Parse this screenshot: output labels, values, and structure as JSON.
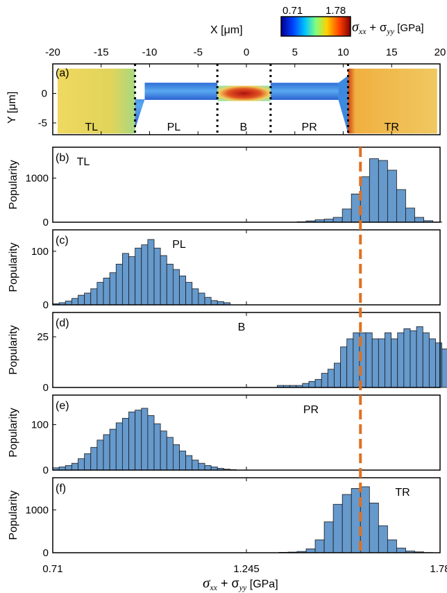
{
  "colorbar": {
    "min_label": "0.71",
    "max_label": "1.78",
    "label_main": "σ",
    "label_sub1": "xx",
    "label_plus": " + σ",
    "label_sub2": "yy",
    "label_unit": " [GPa]",
    "colors": [
      "#00008f",
      "#0040ff",
      "#00c0ff",
      "#80ff80",
      "#ffd000",
      "#ff4000",
      "#800000"
    ]
  },
  "map_panel": {
    "panel_label": "(a)",
    "x_axis_title": "X [μm]",
    "y_axis_title": "Y [μm]",
    "x_ticks": [
      "-20",
      "-15",
      "-10",
      "-5",
      "0",
      "5",
      "10",
      "15",
      "20"
    ],
    "y_ticks": [
      "0",
      "-5"
    ],
    "xlim": [
      -20,
      20
    ],
    "ylim": [
      -7,
      5
    ],
    "region_labels": [
      "TL",
      "PL",
      "B",
      "PR",
      "TR"
    ],
    "region_boundaries_x": [
      -11.5,
      -3,
      2.5,
      10.5
    ],
    "colors": {
      "TL": "#e8d45a",
      "PL": "#3c8ae0",
      "B": "#c02020",
      "PR": "#3c8ae0",
      "TR": "#e8c85a"
    }
  },
  "x_axis": {
    "ticks": [
      "0.71",
      "1.245",
      "1.78"
    ],
    "label_main": "σ",
    "label_sub1": "xx",
    "label_plus": " + σ",
    "label_sub2": "yy",
    "label_unit": " [GPa]"
  },
  "dashed_line": {
    "x": 1.56,
    "color": "#e07020"
  },
  "bar_color": "#6699cc",
  "chart_data": [
    {
      "type": "bar",
      "panel_label": "(b)",
      "region": "TL",
      "ylabel": "Popularity",
      "yticks": [
        "0",
        "1000"
      ],
      "ylim": [
        0,
        1700
      ],
      "bin_start": 0.71,
      "bin_width": 0.025,
      "values": [
        0,
        0,
        0,
        0,
        0,
        0,
        0,
        0,
        0,
        0,
        0,
        0,
        0,
        0,
        0,
        0,
        0,
        0,
        0,
        0,
        0,
        0,
        0,
        0,
        0,
        0,
        0,
        10,
        30,
        55,
        70,
        110,
        300,
        640,
        1030,
        1440,
        1400,
        1180,
        740,
        320,
        110,
        35,
        5,
        0
      ]
    },
    {
      "type": "bar",
      "panel_label": "(c)",
      "region": "PL",
      "ylabel": "Popularity",
      "yticks": [
        "0",
        "100"
      ],
      "ylim": [
        0,
        140
      ],
      "bin_start": 0.71,
      "bin_width": 0.0175,
      "values": [
        2,
        4,
        7,
        12,
        18,
        22,
        30,
        42,
        50,
        60,
        76,
        96,
        90,
        106,
        112,
        122,
        106,
        92,
        76,
        66,
        54,
        42,
        30,
        22,
        14,
        8,
        6,
        4
      ]
    },
    {
      "type": "bar",
      "panel_label": "(d)",
      "region": "B",
      "ylabel": "Popularity",
      "yticks": [
        "0",
        "25"
      ],
      "ylim": [
        0,
        37
      ],
      "bin_start": 1.33,
      "bin_width": 0.0175,
      "values": [
        1,
        1,
        1,
        1,
        2,
        3,
        4,
        7,
        9,
        12,
        20,
        24,
        27,
        27,
        27,
        24,
        24,
        27,
        24,
        27,
        29,
        28,
        30,
        27,
        24,
        22,
        19,
        20,
        19,
        17,
        12,
        7,
        3
      ]
    },
    {
      "type": "bar",
      "panel_label": "(e)",
      "region": "PR",
      "ylabel": "Popularity",
      "yticks": [
        "0",
        "100"
      ],
      "ylim": [
        0,
        165
      ],
      "bin_start": 0.71,
      "bin_width": 0.0175,
      "values": [
        5,
        7,
        10,
        15,
        25,
        36,
        50,
        66,
        78,
        90,
        104,
        114,
        128,
        132,
        136,
        120,
        102,
        86,
        72,
        56,
        42,
        32,
        22,
        15,
        10,
        7,
        4,
        2,
        1
      ]
    },
    {
      "type": "bar",
      "panel_label": "(f)",
      "region": "TR",
      "ylabel": "Popularity",
      "yticks": [
        "0",
        "1000"
      ],
      "ylim": [
        0,
        1750
      ],
      "bin_start": 0.71,
      "bin_width": 0.025,
      "values": [
        0,
        0,
        0,
        0,
        0,
        0,
        0,
        0,
        0,
        0,
        0,
        0,
        0,
        0,
        0,
        0,
        0,
        0,
        0,
        0,
        0,
        0,
        0,
        0,
        0,
        10,
        15,
        30,
        90,
        300,
        720,
        1130,
        1360,
        1500,
        1540,
        1160,
        630,
        300,
        110,
        40,
        20,
        5,
        0
      ]
    }
  ]
}
